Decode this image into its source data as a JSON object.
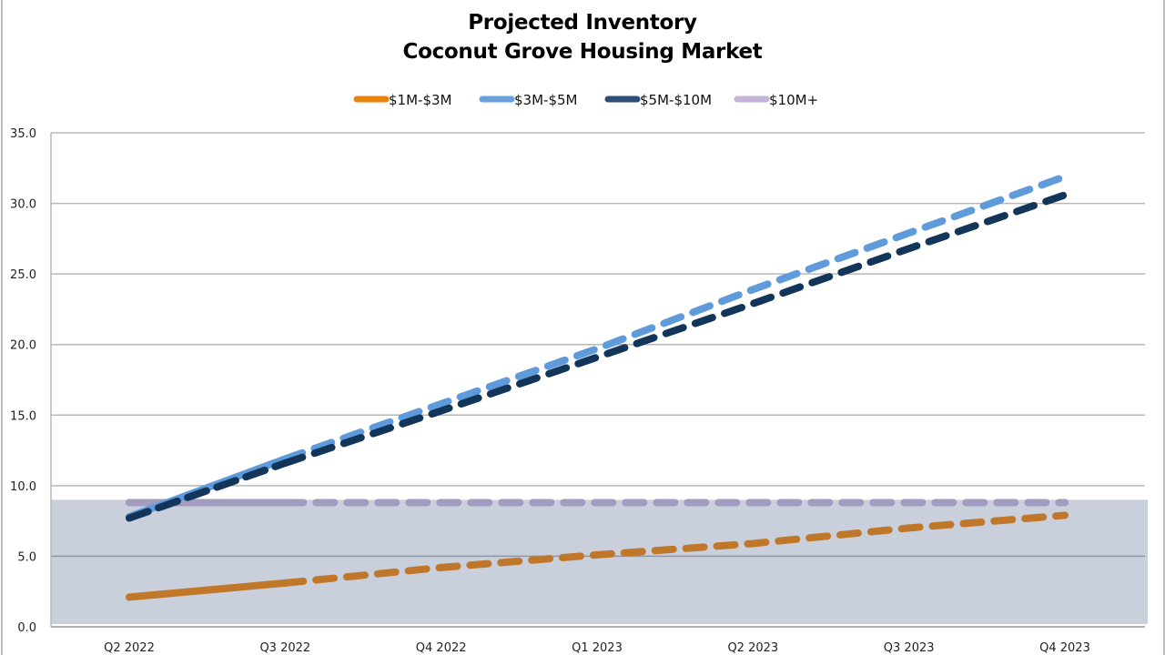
{
  "chart_data": {
    "type": "line",
    "title": "Projected Inventory",
    "subtitle": "Coconut Grove Housing Market",
    "xlabel": "",
    "ylabel": "",
    "categories": [
      "Q2 2022",
      "Q3 2022",
      "Q4 2022",
      "Q1 2023",
      "Q2 2023",
      "Q3 2023",
      "Q4 2023"
    ],
    "ylim": [
      0,
      35
    ],
    "yticks": [
      "0.0",
      "5.0",
      "10.0",
      "15.0",
      "20.0",
      "25.0",
      "30.0",
      "35.0"
    ],
    "ytick_values": [
      0,
      5,
      10,
      15,
      20,
      25,
      30,
      35
    ],
    "grid": true,
    "legend_position": "top",
    "shaded_band": {
      "from": 0,
      "to": 9.0,
      "color": "#C9D0DC"
    },
    "projection_starts_at": "Q3 2022",
    "series": [
      {
        "name": "$1M-$3M",
        "color": "#C0772A",
        "legend_color": "#E8820C",
        "values": [
          2.1,
          3.1,
          4.2,
          5.1,
          5.9,
          7.0,
          7.9
        ]
      },
      {
        "name": "$3M-$5M",
        "color": "#5F9BDB",
        "legend_color": "#6A9FDD",
        "values": [
          7.8,
          11.9,
          15.8,
          19.7,
          23.9,
          27.9,
          31.9
        ]
      },
      {
        "name": "$5M-$10M",
        "color": "#14355A",
        "legend_color": "#2E4F78",
        "values": [
          7.7,
          11.6,
          15.3,
          19.1,
          22.9,
          26.8,
          30.6
        ]
      },
      {
        "name": "$10M+",
        "color": "#A39CC0",
        "legend_color": "#C3B4D8",
        "values": [
          8.8,
          8.8,
          8.8,
          8.8,
          8.8,
          8.8,
          8.8
        ]
      }
    ]
  }
}
